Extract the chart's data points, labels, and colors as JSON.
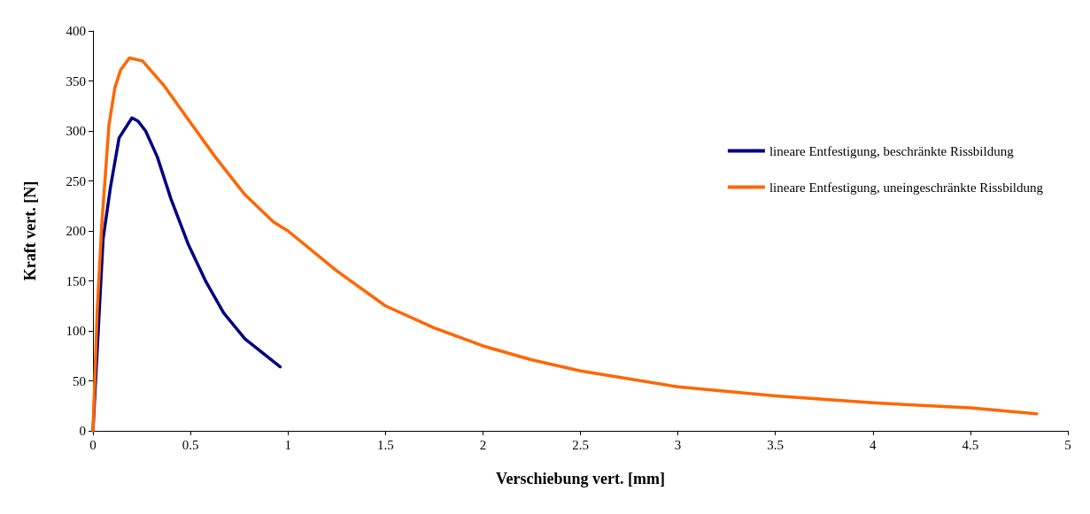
{
  "chart_data": {
    "type": "line",
    "xlabel": "Verschiebung vert. [mm]",
    "ylabel": "Kraft vert. [N]",
    "xlim": [
      0,
      5
    ],
    "xticks": [
      0,
      0.5,
      1,
      1.5,
      2,
      2.5,
      3,
      3.5,
      4,
      4.5,
      5
    ],
    "ylim": [
      0,
      400
    ],
    "yticks": [
      0,
      50,
      100,
      150,
      200,
      250,
      300,
      350,
      400
    ],
    "grid": false,
    "legend": "right",
    "marker": "none",
    "line_style": "solid",
    "series": [
      {
        "name": "lineare Entfestigung, beschränkte Rissbildung",
        "color": "#000080",
        "x": [
          0,
          0.052,
          0.09,
          0.134,
          0.2,
          0.23,
          0.27,
          0.33,
          0.4,
          0.49,
          0.58,
          0.67,
          0.78,
          0.87,
          0.96
        ],
        "values": [
          0,
          192,
          244,
          293,
          313,
          310,
          300,
          274,
          232,
          186,
          149,
          118,
          92,
          78,
          64
        ]
      },
      {
        "name": "lineare Entfestigung, uneingeschränkte Rissbildung",
        "color": "#ff6600",
        "x": [
          0,
          0.022,
          0.045,
          0.082,
          0.112,
          0.142,
          0.187,
          0.254,
          0.366,
          0.49,
          0.627,
          0.776,
          0.925,
          1,
          1.25,
          1.5,
          1.75,
          2,
          2.25,
          2.5,
          3,
          3.5,
          4,
          4.5,
          4.84
        ],
        "values": [
          0,
          121,
          206,
          306,
          343,
          361,
          373,
          370,
          345,
          311,
          274,
          237,
          209,
          200,
          160,
          125,
          103,
          85,
          71,
          60,
          44,
          35,
          28,
          23,
          17
        ]
      }
    ]
  }
}
